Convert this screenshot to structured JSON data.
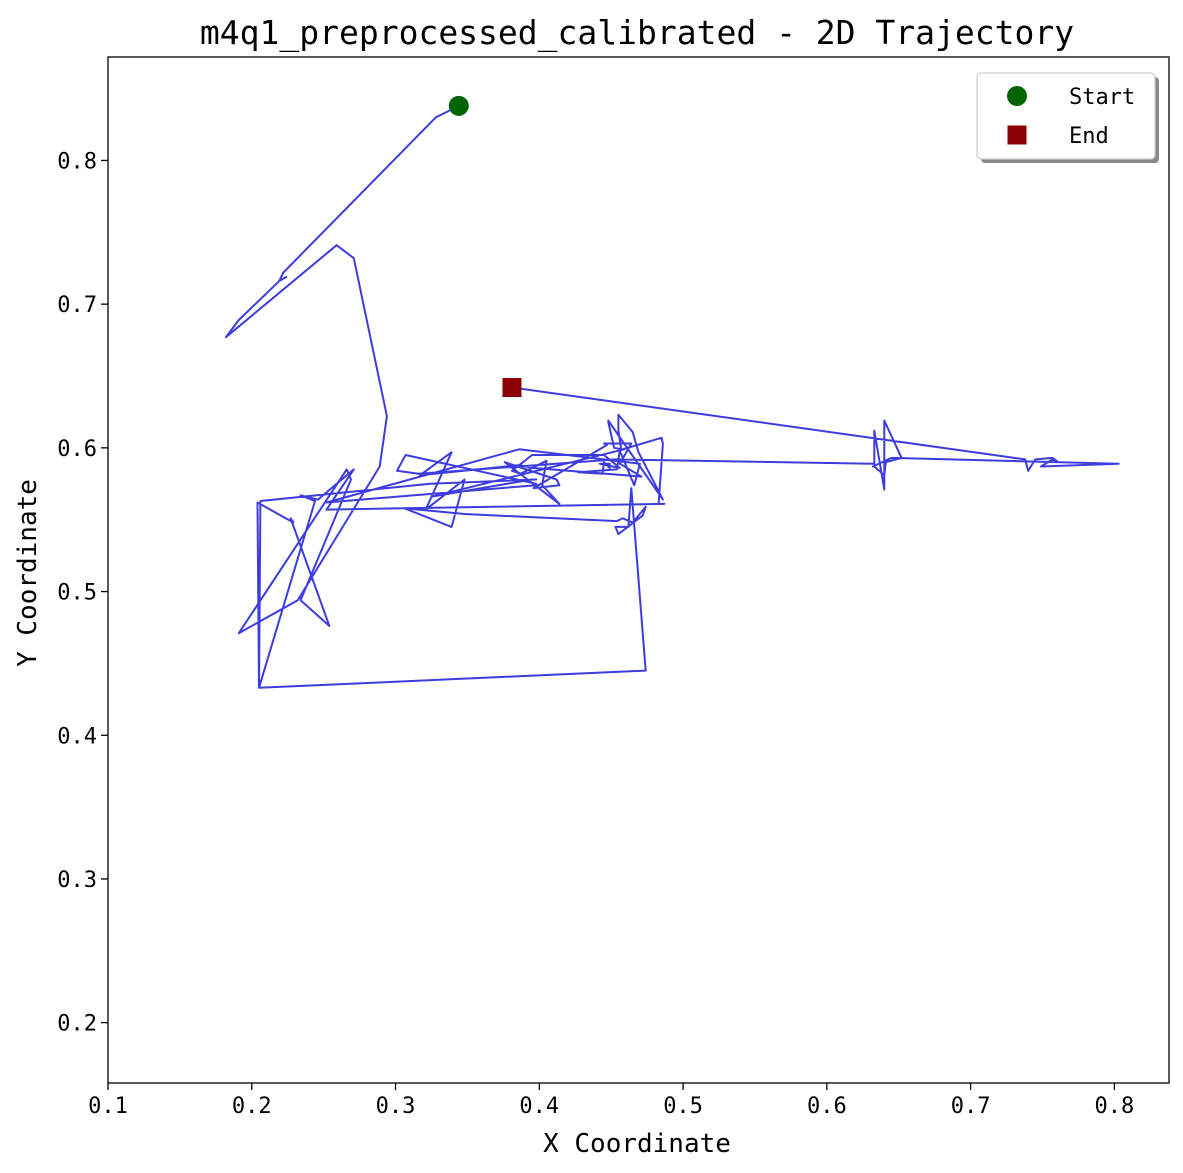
{
  "chart_data": {
    "type": "line",
    "title": "m4q1_preprocessed_calibrated - 2D Trajectory",
    "xlabel": "X Coordinate",
    "ylabel": "Y Coordinate",
    "xlim": [
      0.1,
      0.838
    ],
    "ylim": [
      0.158,
      0.872
    ],
    "xticks": [
      0.1,
      0.2,
      0.3,
      0.4,
      0.5,
      0.6,
      0.7,
      0.8
    ],
    "yticks": [
      0.2,
      0.3,
      0.4,
      0.5,
      0.6,
      0.7,
      0.8
    ],
    "xtick_labels": [
      "0.1",
      "0.2",
      "0.3",
      "0.4",
      "0.5",
      "0.6",
      "0.7",
      "0.8"
    ],
    "ytick_labels": [
      "0.2",
      "0.3",
      "0.4",
      "0.5",
      "0.6",
      "0.7",
      "0.8"
    ],
    "grid": false,
    "legend_position": "top-right",
    "line_color": "#3333dd",
    "series": [
      {
        "x": [
          0.344,
          0.328,
          0.222,
          0.219,
          0.224,
          0.219,
          0.191,
          0.182,
          0.259,
          0.271,
          0.294,
          0.289,
          0.232,
          0.191,
          0.266,
          0.269,
          0.234,
          0.254,
          0.227,
          0.229,
          0.204,
          0.205,
          0.244,
          0.234,
          0.246,
          0.271,
          0.252,
          0.487,
          0.487,
          0.483,
          0.486,
          0.485,
          0.458,
          0.457,
          0.455,
          0.455,
          0.465,
          0.469,
          0.486,
          0.448,
          0.448,
          0.452,
          0.458,
          0.459,
          0.325,
          0.395,
          0.398,
          0.324,
          0.206,
          0.205,
          0.474,
          0.464,
          0.462,
          0.453,
          0.455,
          0.472,
          0.474,
          0.465,
          0.458,
          0.454,
          0.348,
          0.306,
          0.339,
          0.348,
          0.321,
          0.339,
          0.317,
          0.386,
          0.396,
          0.471,
          0.456,
          0.464,
          0.445,
          0.447,
          0.396,
          0.414,
          0.412,
          0.376,
          0.414,
          0.402,
          0.405,
          0.387,
          0.381,
          0.395,
          0.445,
          0.456,
          0.442,
          0.449,
          0.449,
          0.445,
          0.444,
          0.427,
          0.454,
          0.456,
          0.466,
          0.47,
          0.386,
          0.252,
          0.398,
          0.398,
          0.307,
          0.307,
          0.301,
          0.316,
          0.453,
          0.633,
          0.633,
          0.64,
          0.64,
          0.652,
          0.641,
          0.64,
          0.633,
          0.632,
          0.645,
          0.803,
          0.749,
          0.757,
          0.761,
          0.757,
          0.745,
          0.74,
          0.738,
          0.381
        ],
        "y": [
          0.838,
          0.83,
          0.722,
          0.716,
          0.719,
          0.716,
          0.689,
          0.677,
          0.741,
          0.732,
          0.622,
          0.587,
          0.494,
          0.471,
          0.585,
          0.578,
          0.494,
          0.476,
          0.551,
          0.548,
          0.562,
          0.433,
          0.563,
          0.567,
          0.564,
          0.585,
          0.557,
          0.561,
          0.561,
          0.561,
          0.603,
          0.607,
          0.599,
          0.599,
          0.612,
          0.623,
          0.611,
          0.597,
          0.564,
          0.619,
          0.618,
          0.6,
          0.599,
          0.599,
          0.566,
          0.578,
          0.578,
          0.575,
          0.563,
          0.433,
          0.445,
          0.572,
          0.545,
          0.545,
          0.54,
          0.553,
          0.559,
          0.548,
          0.551,
          0.549,
          0.554,
          0.558,
          0.545,
          0.578,
          0.557,
          0.597,
          0.581,
          0.588,
          0.586,
          0.58,
          0.589,
          0.603,
          0.603,
          0.602,
          0.572,
          0.574,
          0.578,
          0.59,
          0.561,
          0.574,
          0.591,
          0.582,
          0.584,
          0.595,
          0.595,
          0.586,
          0.589,
          0.589,
          0.586,
          0.59,
          0.582,
          0.583,
          0.585,
          0.598,
          0.574,
          0.589,
          0.599,
          0.562,
          0.574,
          0.575,
          0.595,
          0.595,
          0.584,
          0.582,
          0.592,
          0.589,
          0.612,
          0.571,
          0.619,
          0.593,
          0.59,
          0.581,
          0.587,
          0.587,
          0.593,
          0.589,
          0.587,
          0.592,
          0.59,
          0.593,
          0.592,
          0.584,
          0.592,
          0.642
        ],
        "_note_ignored": ""
      }
    ],
    "markers": [
      {
        "label": "Start",
        "x": 0.344,
        "y": 0.838,
        "shape": "circle",
        "color": "#006400"
      },
      {
        "label": "End",
        "x": 0.381,
        "y": 0.642,
        "shape": "square",
        "color": "#8b0000"
      }
    ]
  }
}
